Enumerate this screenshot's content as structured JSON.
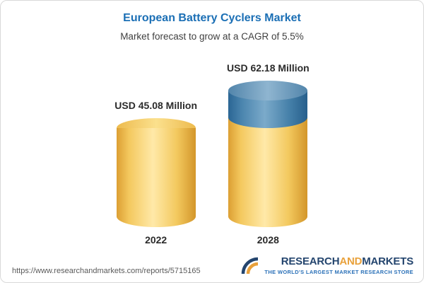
{
  "header": {
    "title": "European Battery Cyclers Market",
    "subtitle": "Market forecast to grow at a CAGR of 5.5%"
  },
  "chart_data": {
    "type": "bar",
    "title": "European Battery Cyclers Market",
    "subtitle": "Market forecast to grow at a CAGR of 5.5%",
    "categories": [
      "2022",
      "2028"
    ],
    "values": [
      45.08,
      62.18
    ],
    "value_labels": [
      "USD 45.08 Million",
      "USD 62.18 Million"
    ],
    "unit": "USD Million",
    "cagr": "5.5%",
    "ylim": [
      0,
      70
    ],
    "grid": false,
    "legend": "none",
    "colors": {
      "base": "#f3c95f",
      "growth": "#447fa8"
    }
  },
  "footer": {
    "url": "https://www.researchandmarkets.com/reports/5715165",
    "logo": {
      "part1": "RESEARCH",
      "part2": "AND",
      "part3": "MARKETS",
      "tagline": "THE WORLD'S LARGEST MARKET RESEARCH STORE"
    }
  }
}
